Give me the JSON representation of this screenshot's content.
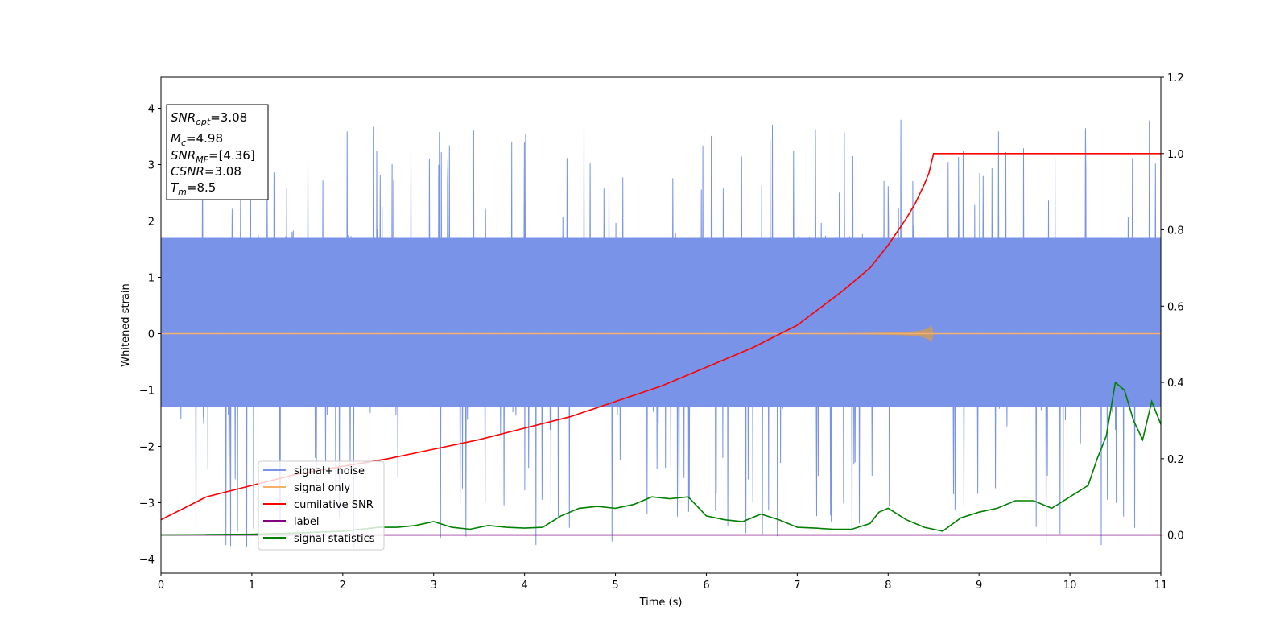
{
  "chart_data": {
    "type": "line",
    "xlabel": "Time (s)",
    "ylabel": "Whitened strain",
    "xlim": [
      0,
      11
    ],
    "ylim": [
      -4.25,
      4.55
    ],
    "y2lim": [
      -0.1,
      1.2
    ],
    "grid": false,
    "x_ticks": [
      0,
      1,
      2,
      3,
      4,
      5,
      6,
      7,
      8,
      9,
      10,
      11
    ],
    "x_tick_labels": [
      "0",
      "1",
      "2",
      "3",
      "4",
      "5",
      "6",
      "7",
      "8",
      "9",
      "10",
      "11"
    ],
    "y_ticks": [
      -4,
      -3,
      -2,
      -1,
      0,
      1,
      2,
      3,
      4
    ],
    "y_tick_labels": [
      "−4",
      "−3",
      "−2",
      "−1",
      "0",
      "1",
      "2",
      "3",
      "4"
    ],
    "y2_ticks": [
      0.0,
      0.2,
      0.4,
      0.6,
      0.8,
      1.0,
      1.2
    ],
    "y2_tick_labels": [
      "0.0",
      "0.2",
      "0.4",
      "0.6",
      "0.8",
      "1.0",
      "1.2"
    ],
    "legend_placement": "lower-left",
    "annotation": {
      "snr_opt": {
        "name": "SNR",
        "sub": "opt",
        "value": "=3.08"
      },
      "mc": {
        "name": "M",
        "sub": "c",
        "value": "=4.98"
      },
      "snr_mf": {
        "name": "SNR",
        "sub": "MF",
        "value": "=[4.36]"
      },
      "csnr": {
        "name": "CSNR",
        "value": "=3.08"
      },
      "tm": {
        "name": "T",
        "sub": "m",
        "value": "=8.5"
      }
    },
    "series": [
      {
        "name": "signal+ noise",
        "axis": "left",
        "color": "#7893e8",
        "kind": "noise",
        "note_values": {
          "x_range": [
            0,
            11
          ],
          "band_min": -1.3,
          "band_max": 1.7,
          "peak_min": -3.8,
          "peak_max": 3.88
        }
      },
      {
        "name": "signal only",
        "axis": "left",
        "color": "#f5b06e",
        "kind": "chirp",
        "note_values": {
          "x_range": [
            0,
            11
          ],
          "merger_time": 8.5,
          "peak_amplitude": 0.35
        }
      },
      {
        "name": "cumilative SNR",
        "axis": "right",
        "color": "#ff0000",
        "x": [
          0,
          0.5,
          1,
          1.5,
          2,
          2.5,
          3,
          3.5,
          4,
          4.5,
          5,
          5.5,
          6,
          6.5,
          7,
          7.5,
          7.8,
          8.0,
          8.2,
          8.3,
          8.4,
          8.45,
          8.5,
          9,
          10,
          11
        ],
        "values": [
          0.04,
          0.1,
          0.13,
          0.16,
          0.18,
          0.2,
          0.225,
          0.25,
          0.28,
          0.31,
          0.35,
          0.39,
          0.44,
          0.49,
          0.55,
          0.64,
          0.7,
          0.76,
          0.83,
          0.87,
          0.92,
          0.95,
          1.0,
          1.0,
          1.0,
          1.0
        ]
      },
      {
        "name": "label",
        "axis": "right",
        "color": "#800080",
        "x": [
          0,
          11
        ],
        "values": [
          0.0,
          0.0
        ]
      },
      {
        "name": "signal statistics",
        "axis": "right",
        "color": "#008000",
        "x": [
          0,
          0.5,
          1.0,
          1.5,
          2.0,
          2.4,
          2.6,
          2.8,
          3.0,
          3.2,
          3.4,
          3.6,
          3.8,
          4.0,
          4.2,
          4.4,
          4.6,
          4.8,
          5.0,
          5.2,
          5.4,
          5.6,
          5.8,
          6.0,
          6.2,
          6.4,
          6.6,
          6.8,
          7.0,
          7.2,
          7.4,
          7.6,
          7.8,
          7.9,
          8.0,
          8.2,
          8.4,
          8.6,
          8.8,
          9.0,
          9.2,
          9.4,
          9.6,
          9.8,
          10.0,
          10.2,
          10.3,
          10.4,
          10.5,
          10.6,
          10.7,
          10.8,
          10.9,
          11.0
        ],
        "values": [
          0.0,
          0.001,
          0.002,
          0.005,
          0.01,
          0.02,
          0.02,
          0.025,
          0.035,
          0.02,
          0.015,
          0.025,
          0.02,
          0.018,
          0.02,
          0.05,
          0.07,
          0.075,
          0.07,
          0.08,
          0.1,
          0.095,
          0.1,
          0.05,
          0.04,
          0.035,
          0.055,
          0.04,
          0.02,
          0.018,
          0.015,
          0.015,
          0.03,
          0.06,
          0.07,
          0.04,
          0.02,
          0.01,
          0.045,
          0.06,
          0.07,
          0.09,
          0.09,
          0.07,
          0.1,
          0.13,
          0.2,
          0.26,
          0.4,
          0.38,
          0.3,
          0.25,
          0.35,
          0.29
        ]
      }
    ]
  }
}
